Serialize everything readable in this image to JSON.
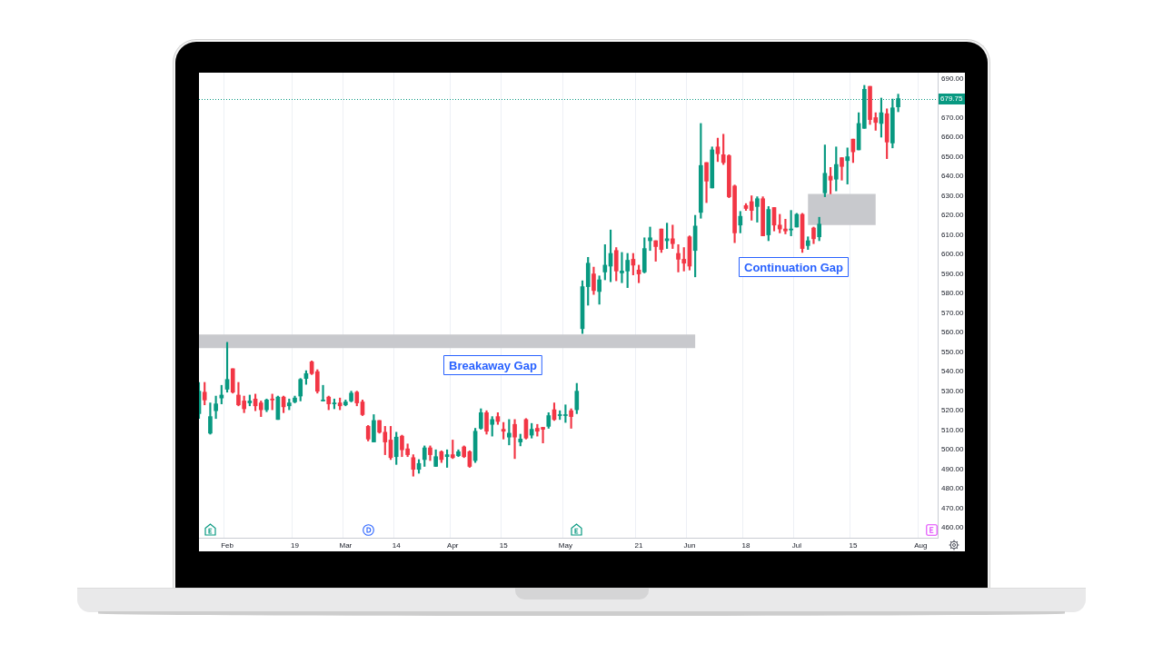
{
  "chart_data": {
    "type": "candlestick",
    "categories": [
      null,
      null,
      null,
      null,
      null,
      "Feb",
      null,
      null,
      null,
      null,
      null,
      null,
      null,
      null,
      null,
      null,
      null,
      "19",
      null,
      null,
      null,
      null,
      null,
      null,
      null,
      null,
      "Mar",
      null,
      null,
      null,
      null,
      null,
      null,
      null,
      null,
      "14",
      null,
      null,
      null,
      null,
      null,
      null,
      null,
      null,
      null,
      "Apr",
      null,
      null,
      null,
      null,
      null,
      null,
      null,
      null,
      "15",
      null,
      null,
      null,
      null,
      null,
      null,
      null,
      null,
      null,
      null,
      "May",
      null,
      null,
      null,
      null,
      null,
      null,
      null,
      null,
      null,
      null,
      null,
      null,
      "21",
      null,
      null,
      null,
      null,
      null,
      null,
      null,
      null,
      "Jun",
      null,
      null,
      null,
      null,
      null,
      null,
      null,
      null,
      null,
      "18",
      null,
      null,
      null,
      null,
      null,
      null,
      null,
      null,
      "Jul",
      null,
      null,
      null,
      null,
      null,
      null,
      null,
      null,
      null,
      "15",
      null,
      null,
      null,
      null,
      null,
      null,
      null,
      null,
      null,
      null,
      null,
      "Aug",
      null,
      null,
      null
    ],
    "ohlc": [
      [
        518.5,
        534.5,
        516,
        530
      ],
      [
        529.5,
        534.5,
        523,
        525.5
      ],
      [
        508.5,
        524,
        508,
        517
      ],
      [
        520,
        527.5,
        516,
        523.5
      ],
      [
        526.5,
        533,
        523.5,
        528
      ],
      [
        531,
        555,
        529.5,
        536
      ],
      [
        541.5,
        541.5,
        529,
        529.5
      ],
      [
        528,
        534.5,
        522.5,
        523
      ],
      [
        525,
        527.5,
        519,
        521
      ],
      [
        524,
        528,
        522.5,
        525
      ],
      [
        526,
        528.5,
        520,
        522.5
      ],
      [
        524,
        525,
        517,
        520.5
      ],
      [
        520.5,
        526,
        519.5,
        525.5
      ],
      [
        526,
        528.5,
        520.5,
        525.5
      ],
      [
        515.5,
        527.5,
        515.5,
        527
      ],
      [
        527,
        527.5,
        519,
        522
      ],
      [
        522.5,
        526,
        520.5,
        524
      ],
      [
        524.5,
        527.5,
        524,
        526.5
      ],
      [
        527.5,
        536.5,
        525,
        536
      ],
      [
        536.5,
        540.5,
        533.5,
        539
      ],
      [
        545,
        545.5,
        538.5,
        539
      ],
      [
        540,
        541,
        529,
        530
      ],
      [
        525,
        533,
        525,
        525.5
      ],
      [
        527,
        527.5,
        520.5,
        523.5
      ],
      [
        523.5,
        526,
        521,
        524
      ],
      [
        524,
        526.5,
        520.5,
        522.5
      ],
      [
        523,
        525.5,
        522.5,
        524.5
      ],
      [
        525,
        530,
        524.5,
        529
      ],
      [
        529.5,
        530,
        522.5,
        524
      ],
      [
        524.5,
        525.5,
        517.5,
        518
      ],
      [
        512,
        512.5,
        504.5,
        505.5
      ],
      [
        504,
        518,
        504,
        515
      ],
      [
        515,
        515,
        508.5,
        509
      ],
      [
        509,
        512,
        497.5,
        504
      ],
      [
        505,
        512,
        495,
        496
      ],
      [
        496.5,
        509,
        492.5,
        506.5
      ],
      [
        507,
        507.5,
        496.5,
        500
      ],
      [
        500.5,
        503,
        496.5,
        497.5
      ],
      [
        496,
        497.5,
        486.5,
        490
      ],
      [
        490,
        495,
        488,
        493
      ],
      [
        495,
        502,
        491.5,
        501
      ],
      [
        501,
        502,
        494.5,
        497.5
      ],
      [
        491.5,
        500,
        491.5,
        496.5
      ],
      [
        499,
        499.5,
        493.5,
        495
      ],
      [
        496.5,
        500,
        491,
        497.5
      ],
      [
        497.5,
        505,
        495.5,
        496
      ],
      [
        497,
        500,
        496.5,
        499
      ],
      [
        501.5,
        502,
        496,
        496.5
      ],
      [
        499,
        499.5,
        491,
        491.5
      ],
      [
        494.5,
        511,
        493.5,
        509.5
      ],
      [
        511,
        521,
        510.5,
        519
      ],
      [
        519,
        520,
        508,
        509.5
      ],
      [
        513,
        517,
        507,
        515.5
      ],
      [
        517,
        519,
        513,
        514.5
      ],
      [
        510.5,
        514,
        505.5,
        509.5
      ],
      [
        506.5,
        515.5,
        502.5,
        508.5
      ],
      [
        513,
        515.5,
        495.5,
        506.5
      ],
      [
        504,
        508,
        502,
        505.5
      ],
      [
        515.5,
        516,
        505.5,
        506
      ],
      [
        507.5,
        513.5,
        506,
        510.5
      ],
      [
        511,
        513,
        507,
        509.5
      ],
      [
        511.5,
        511.5,
        503.5,
        510.5
      ],
      [
        512,
        519,
        511,
        517.5
      ],
      [
        520.5,
        524,
        515,
        515.5
      ],
      [
        517.5,
        520,
        515.5,
        518
      ],
      [
        517.5,
        523,
        514,
        518
      ],
      [
        520,
        521,
        511,
        517
      ],
      [
        520.5,
        534,
        518.5,
        530
      ],
      [
        562,
        586.5,
        559.5,
        583.5
      ],
      [
        583.5,
        598.5,
        574,
        595.5
      ],
      [
        590,
        593.5,
        579.5,
        581.5
      ],
      [
        581,
        589,
        574.5,
        587
      ],
      [
        591,
        605,
        587,
        594.5
      ],
      [
        594,
        612.5,
        586,
        600.5
      ],
      [
        602,
        603.5,
        586.5,
        591.5
      ],
      [
        590.5,
        601,
        585.5,
        591.5
      ],
      [
        591.5,
        600.5,
        583,
        597
      ],
      [
        597.5,
        600.5,
        589.5,
        594.5
      ],
      [
        592,
        594.5,
        585.5,
        590
      ],
      [
        591,
        608.5,
        590.5,
        603
      ],
      [
        607,
        614,
        602,
        608.5
      ],
      [
        607,
        607,
        596.5,
        604
      ],
      [
        613,
        613,
        601,
        602.5
      ],
      [
        607,
        616,
        603,
        608
      ],
      [
        608,
        615,
        603,
        605.5
      ],
      [
        600.5,
        605,
        591,
        597.5
      ],
      [
        597.5,
        603.5,
        591.5,
        595.5
      ],
      [
        609,
        609.5,
        592,
        594
      ],
      [
        602,
        620,
        588.5,
        614.5
      ],
      [
        621.5,
        667,
        618.5,
        645.5
      ],
      [
        647,
        647,
        626.5,
        637.5
      ],
      [
        634,
        655,
        634,
        653.5
      ],
      [
        655,
        659.5,
        647.5,
        651.5
      ],
      [
        651,
        661.5,
        646,
        647
      ],
      [
        650.5,
        651,
        629,
        629.5
      ],
      [
        635,
        635.5,
        606,
        611
      ],
      [
        615,
        622,
        611,
        619.5
      ],
      [
        625,
        626,
        622.5,
        623.5
      ],
      [
        627,
        630,
        617.5,
        622.5
      ],
      [
        624.5,
        629.5,
        616.5,
        628.5
      ],
      [
        628.5,
        629.5,
        609.5,
        609.5
      ],
      [
        610,
        624.5,
        607,
        623
      ],
      [
        624,
        624,
        612,
        615
      ],
      [
        615,
        620.5,
        611,
        613
      ],
      [
        613,
        618,
        610.5,
        612
      ],
      [
        612.5,
        622.5,
        609.5,
        613
      ],
      [
        614,
        621,
        614,
        620.5
      ],
      [
        620.5,
        621,
        601,
        603
      ],
      [
        604.5,
        609,
        602.5,
        607
      ],
      [
        613.5,
        614,
        605.5,
        608
      ],
      [
        609,
        619,
        607,
        615.5
      ],
      [
        631.5,
        656,
        629.5,
        641.5
      ],
      [
        640,
        644.5,
        631,
        638
      ],
      [
        638.5,
        655,
        632.5,
        646
      ],
      [
        649.5,
        649.5,
        638,
        645
      ],
      [
        648,
        654.5,
        636,
        650
      ],
      [
        659,
        659,
        647,
        652.5
      ],
      [
        653.5,
        672.5,
        653.5,
        667
      ],
      [
        664.5,
        686.5,
        664.5,
        684.5
      ],
      [
        686,
        686,
        666.5,
        669
      ],
      [
        670,
        672.5,
        663.5,
        667.5
      ],
      [
        667,
        680,
        660,
        672.5
      ],
      [
        672,
        674.5,
        649,
        657.5
      ],
      [
        657,
        679.5,
        654.5,
        675
      ],
      [
        675.5,
        682,
        673,
        679.75
      ],
      null,
      null,
      null,
      null,
      null,
      null,
      null
    ],
    "colors": [
      "#089981",
      "#f23645",
      "#089981",
      "#089981",
      "#089981",
      "#089981",
      "#f23645",
      "#f23645",
      "#f23645",
      "#089981",
      "#f23645",
      "#f23645",
      "#089981",
      "#f23645",
      "#089981",
      "#f23645",
      "#089981",
      "#089981",
      "#089981",
      "#089981",
      "#f23645",
      "#f23645",
      "#089981",
      "#f23645",
      "#089981",
      "#f23645",
      "#089981",
      "#089981",
      "#f23645",
      "#f23645",
      "#f23645",
      "#089981",
      "#f23645",
      "#f23645",
      "#f23645",
      "#089981",
      "#f23645",
      "#f23645",
      "#f23645",
      "#089981",
      "#089981",
      "#f23645",
      "#089981",
      "#f23645",
      "#089981",
      "#f23645",
      "#089981",
      "#f23645",
      "#f23645",
      "#089981",
      "#089981",
      "#f23645",
      "#089981",
      "#f23645",
      "#f23645",
      "#089981",
      "#f23645",
      "#089981",
      "#f23645",
      "#089981",
      "#f23645",
      "#f23645",
      "#089981",
      "#f23645",
      "#089981",
      "#089981",
      "#f23645",
      "#089981",
      "#089981",
      "#089981",
      "#f23645",
      "#089981",
      "#089981",
      "#089981",
      "#f23645",
      "#089981",
      "#089981",
      "#f23645",
      "#f23645",
      "#089981",
      "#089981",
      "#f23645",
      "#f23645",
      "#089981",
      "#f23645",
      "#f23645",
      "#f23645",
      "#f23645",
      "#089981",
      "#089981",
      "#f23645",
      "#089981",
      "#f23645",
      "#f23645",
      "#f23645",
      "#f23645",
      "#089981",
      "#f23645",
      "#f23645",
      "#089981",
      "#f23645",
      "#089981",
      "#f23645",
      "#f23645",
      "#f23645",
      "#089981",
      "#089981",
      "#f23645",
      "#089981",
      "#f23645",
      "#089981",
      "#089981",
      "#f23645",
      "#089981",
      "#f23645",
      "#089981",
      "#f23645",
      "#089981",
      "#089981",
      "#f23645",
      "#f23645",
      "#089981",
      "#f23645",
      "#089981",
      "#089981",
      null,
      null,
      null,
      null,
      null,
      null,
      null
    ],
    "ylim": [
      455,
      693
    ],
    "yticks": [
      {
        "value": 460,
        "label": "460.00"
      },
      {
        "value": 470,
        "label": "470.00"
      },
      {
        "value": 480,
        "label": "480.00"
      },
      {
        "value": 490,
        "label": "490.00"
      },
      {
        "value": 500,
        "label": "500.00"
      },
      {
        "value": 510,
        "label": "510.00"
      },
      {
        "value": 520,
        "label": "520.00"
      },
      {
        "value": 530,
        "label": "530.00"
      },
      {
        "value": 540,
        "label": "540.00"
      },
      {
        "value": 550,
        "label": "550.00"
      },
      {
        "value": 560,
        "label": "560.00"
      },
      {
        "value": 570,
        "label": "570.00"
      },
      {
        "value": 580,
        "label": "580.00"
      },
      {
        "value": 590,
        "label": "590.00"
      },
      {
        "value": 600,
        "label": "600.00"
      },
      {
        "value": 610,
        "label": "610.00"
      },
      {
        "value": 620,
        "label": "620.00"
      },
      {
        "value": 630,
        "label": "630.00"
      },
      {
        "value": 640,
        "label": "640.00"
      },
      {
        "value": 650,
        "label": "650.00"
      },
      {
        "value": 660,
        "label": "660.00"
      },
      {
        "value": 670,
        "label": "670.00"
      },
      {
        "value": 690,
        "label": "690.00"
      }
    ],
    "grid": "x",
    "ref_lines": [
      {
        "axis": "y",
        "value": 679.75,
        "label": "679.75",
        "color": "#089981",
        "line_style": "dotted"
      }
    ],
    "bands": [
      {
        "axis": "y",
        "from": 552,
        "to": 559,
        "label": "Breakaway Gap",
        "color": "#c8c9cd"
      },
      {
        "axis": "y",
        "from": 615,
        "to": 631,
        "label": "Continuation Gap",
        "color": "#c8c9cd"
      }
    ]
  }
}
